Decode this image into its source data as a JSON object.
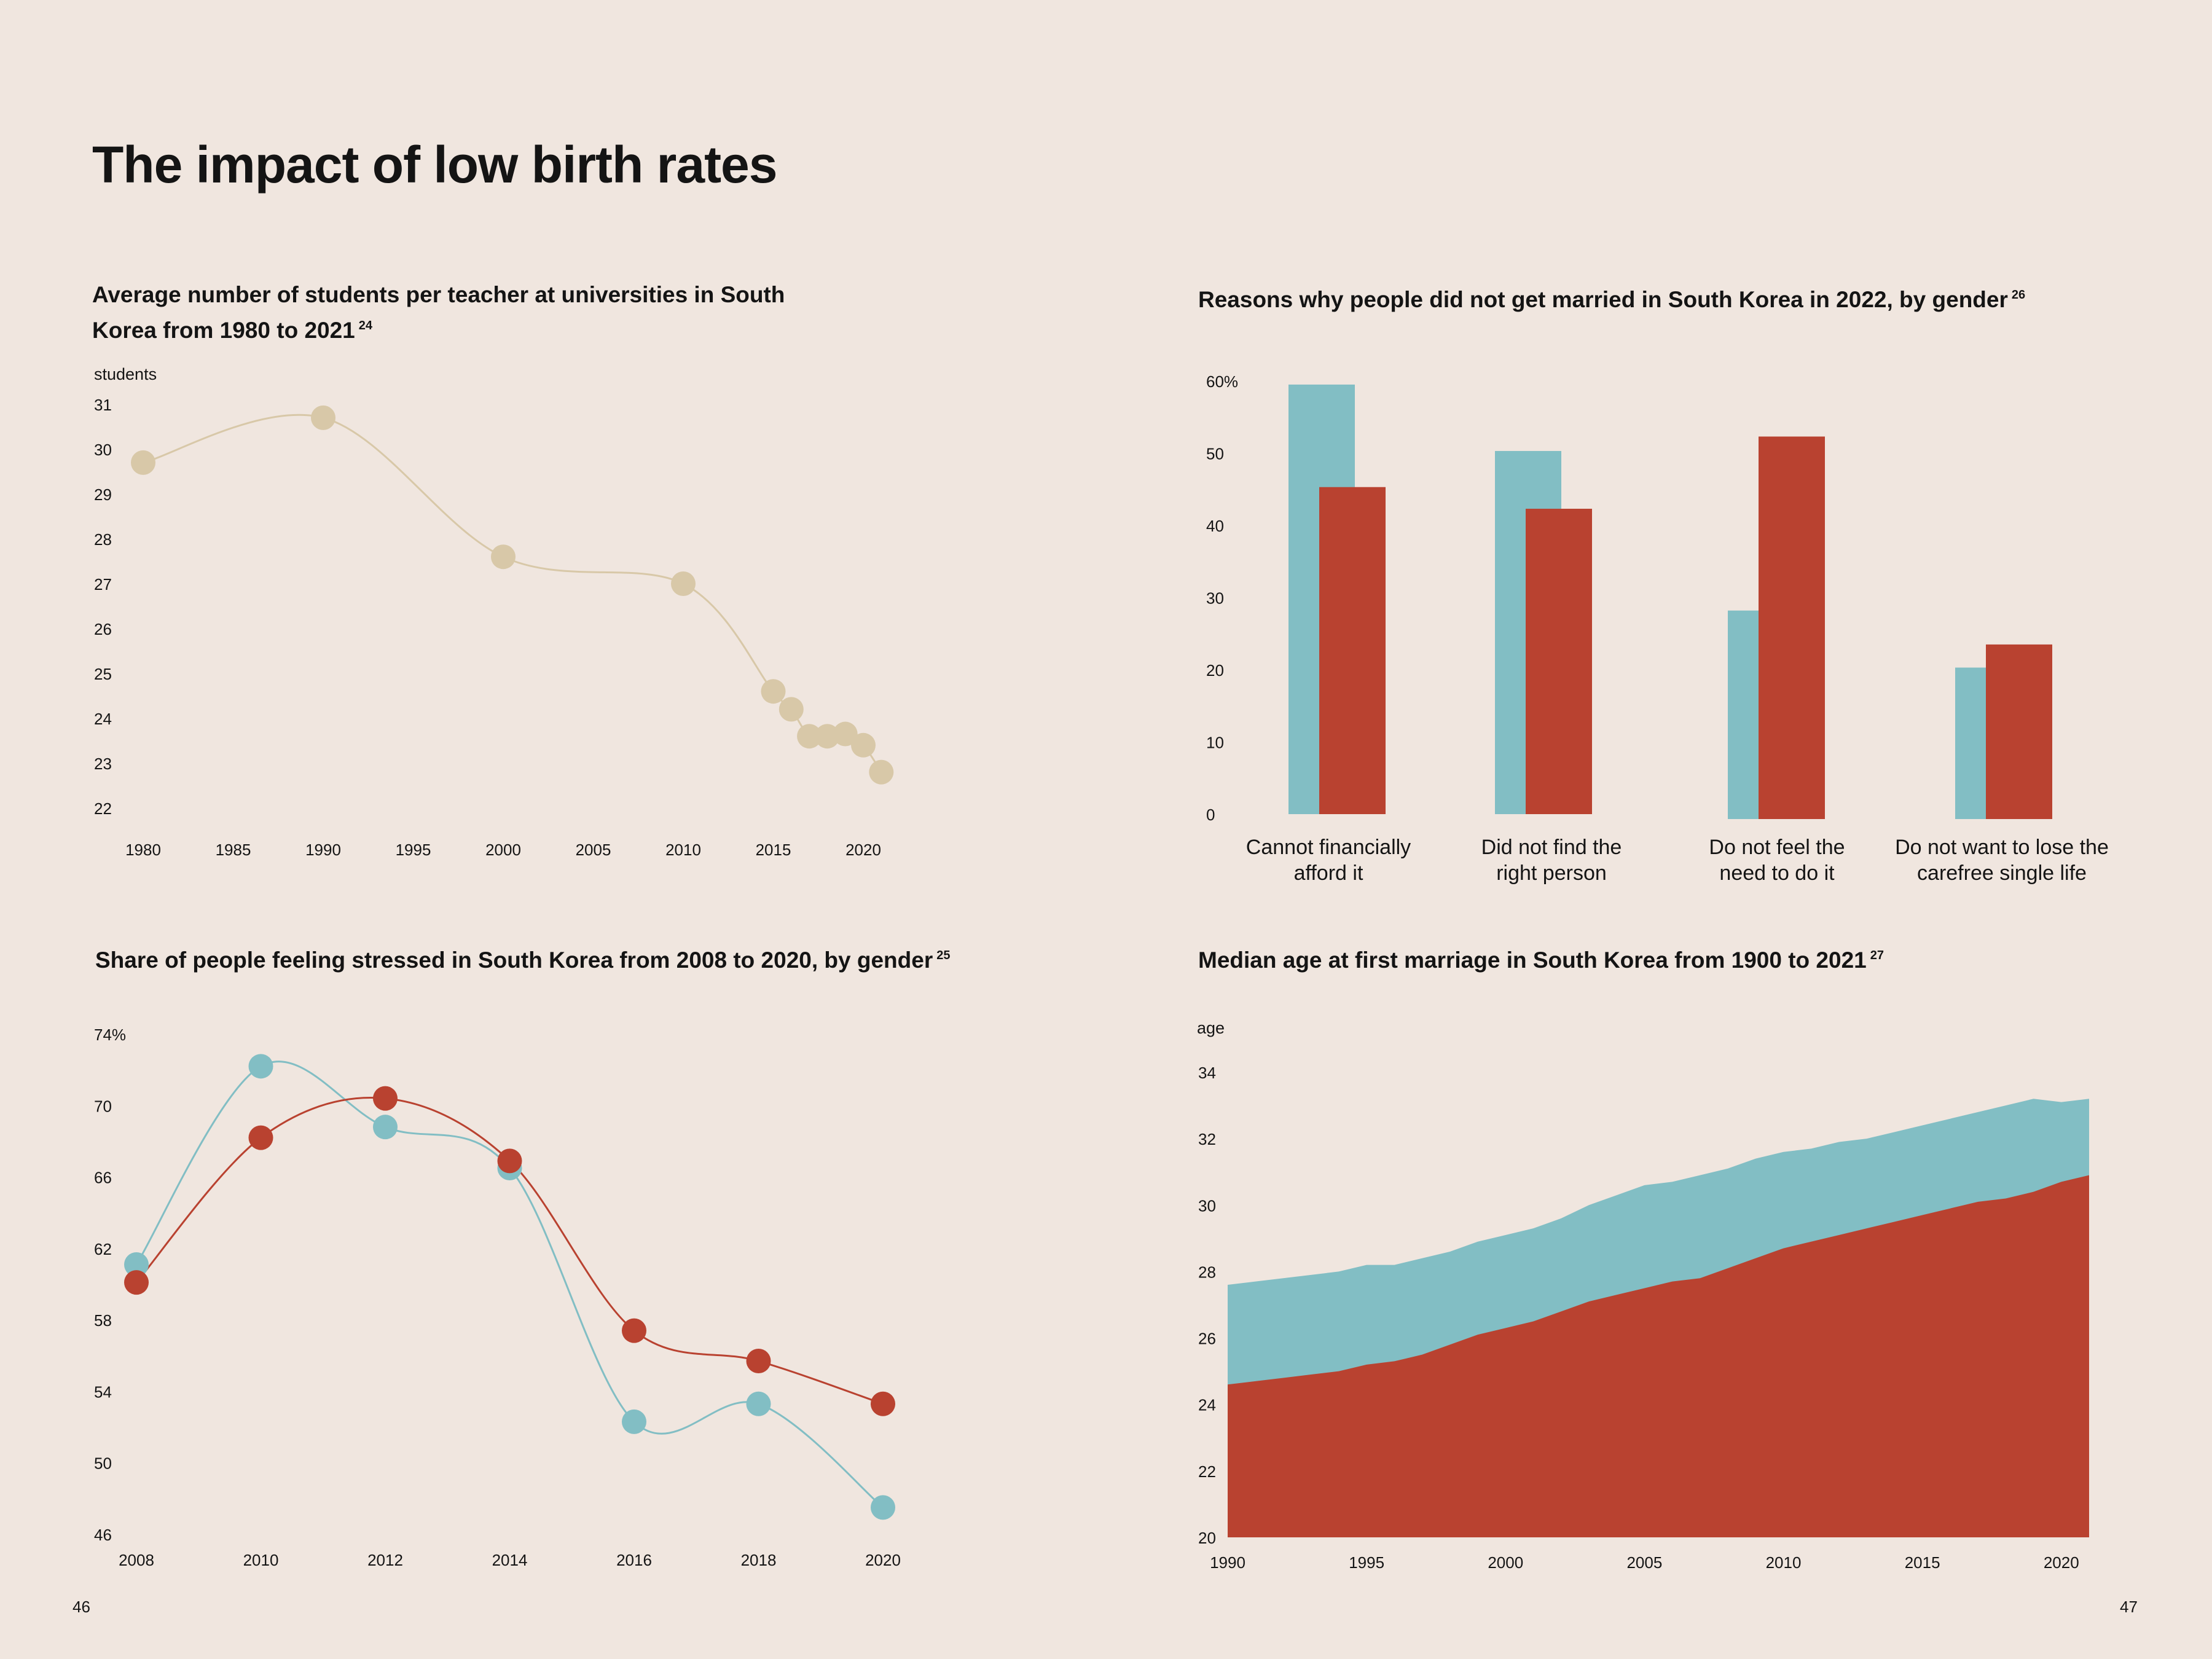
{
  "page": {
    "title": "The impact of low birth rates",
    "page_left": "46",
    "page_right": "47"
  },
  "colors": {
    "background": "#f0e6df",
    "beige": "#d8c8a8",
    "teal": "#82bec4",
    "red": "#b94230"
  },
  "chart_data": [
    {
      "id": "students",
      "type": "line",
      "title": "Average number of students per teacher at universities in South Korea from 1980 to 2021",
      "footnote": "24",
      "ylabel": "students",
      "xlabel": "",
      "ylim": [
        22,
        31
      ],
      "yticks": [
        "22",
        "23",
        "24",
        "25",
        "26",
        "27",
        "28",
        "29",
        "30",
        "31"
      ],
      "xlim": [
        1980,
        2020
      ],
      "xticks": [
        "1980",
        "1985",
        "1990",
        "1995",
        "2000",
        "2005",
        "2010",
        "2015",
        "2020"
      ],
      "series": [
        {
          "x": [
            1980,
            1990,
            2000,
            2010,
            2015,
            2016,
            2017,
            2018,
            2019,
            2020,
            2021
          ],
          "values": [
            29.7,
            30.7,
            27.6,
            27.0,
            24.6,
            24.2,
            23.6,
            23.6,
            23.65,
            23.4,
            22.8
          ]
        }
      ],
      "grid": false
    },
    {
      "id": "marriage-reasons",
      "type": "bar",
      "title": "Reasons why people did not get married in South Korea in 2022, by gender",
      "footnote": "26",
      "categories": [
        [
          "Cannot financially",
          "afford it"
        ],
        [
          "Did not find the",
          "right person"
        ],
        [
          "Do not feel the",
          "need to do it"
        ],
        [
          "Do not want to lose the",
          "carefree single life"
        ]
      ],
      "series": [
        {
          "values": [
            59.5,
            50.3,
            28.2,
            20.3
          ]
        },
        {
          "values": [
            45.3,
            42.3,
            52.3,
            23.5
          ]
        }
      ],
      "ylim": [
        0,
        60
      ],
      "yticks": [
        "0",
        "10",
        "20",
        "30",
        "40",
        "50",
        "60%"
      ],
      "grid": false
    },
    {
      "id": "stress",
      "type": "line",
      "title": "Share of people feeling stressed in South Korea from 2008 to 2020, by gender",
      "footnote": "25",
      "x": [
        2008,
        2010,
        2012,
        2014,
        2016,
        2018,
        2020
      ],
      "xticks": [
        "2008",
        "2010",
        "2012",
        "2014",
        "2016",
        "2018",
        "2020"
      ],
      "series": [
        {
          "values": [
            61.1,
            72.2,
            68.8,
            66.5,
            52.3,
            53.3,
            47.5
          ]
        },
        {
          "values": [
            60.1,
            68.2,
            70.4,
            66.9,
            57.4,
            55.7,
            53.3
          ]
        }
      ],
      "ylim": [
        46,
        74
      ],
      "yticks": [
        "46",
        "50",
        "54",
        "58",
        "62",
        "66",
        "70",
        "74%"
      ],
      "grid": false
    },
    {
      "id": "median-age",
      "type": "area",
      "title": "Median age at first marriage in South Korea from 1900 to 2021",
      "footnote": "27",
      "ylabel": "age",
      "ylim": [
        20,
        34
      ],
      "yticks": [
        "20",
        "22",
        "24",
        "26",
        "28",
        "30",
        "32",
        "34"
      ],
      "xlim": [
        1990,
        2021
      ],
      "xticks": [
        "1990",
        "1995",
        "2000",
        "2005",
        "2010",
        "2015",
        "2020"
      ],
      "x": [
        1990,
        1991,
        1992,
        1993,
        1994,
        1995,
        1996,
        1997,
        1998,
        1999,
        2000,
        2001,
        2002,
        2003,
        2004,
        2005,
        2006,
        2007,
        2008,
        2009,
        2010,
        2011,
        2012,
        2013,
        2014,
        2015,
        2016,
        2017,
        2018,
        2019,
        2020,
        2021
      ],
      "series": [
        {
          "values": [
            27.6,
            27.7,
            27.8,
            27.9,
            28.0,
            28.2,
            28.2,
            28.4,
            28.6,
            28.9,
            29.1,
            29.3,
            29.6,
            30.0,
            30.3,
            30.6,
            30.7,
            30.9,
            31.1,
            31.4,
            31.6,
            31.7,
            31.9,
            32.0,
            32.2,
            32.4,
            32.6,
            32.8,
            33.0,
            33.2,
            33.1,
            33.2
          ]
        },
        {
          "values": [
            24.6,
            24.7,
            24.8,
            24.9,
            25.0,
            25.2,
            25.3,
            25.5,
            25.8,
            26.1,
            26.3,
            26.5,
            26.8,
            27.1,
            27.3,
            27.5,
            27.7,
            27.8,
            28.1,
            28.4,
            28.7,
            28.9,
            29.1,
            29.3,
            29.5,
            29.7,
            29.9,
            30.1,
            30.2,
            30.4,
            30.7,
            30.9
          ]
        }
      ],
      "grid": false
    }
  ]
}
